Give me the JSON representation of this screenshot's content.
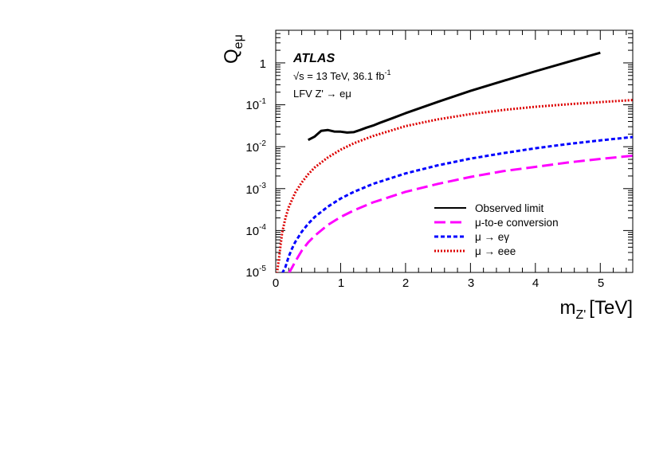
{
  "chart_data": {
    "type": "line",
    "xlabel": "m_{Z'} [TeV]",
    "xlabel_main": "m",
    "xlabel_sub": "Z'",
    "xlabel_unit": "[TeV]",
    "ylabel": "Q_{eμ}",
    "ylabel_main": "Q",
    "ylabel_sub": "eμ",
    "xlim": [
      0,
      5.5
    ],
    "ylim": [
      1e-05,
      6
    ],
    "yscale": "log",
    "x_ticks": [
      "0",
      "1",
      "2",
      "3",
      "4",
      "5"
    ],
    "y_ticks": [
      {
        "base": "10",
        "exp": "-5"
      },
      {
        "base": "10",
        "exp": "-4"
      },
      {
        "base": "10",
        "exp": "-3"
      },
      {
        "base": "10",
        "exp": "-2"
      },
      {
        "base": "10",
        "exp": "-1"
      },
      {
        "base": "1",
        "exp": ""
      }
    ],
    "annotations": {
      "experiment": "ATLAS",
      "energy_prefix": "√s = 13 TeV, 36.1 fb",
      "energy_exp": "-1",
      "process": "LFV Z' → eμ"
    },
    "series": [
      {
        "name": "Observed limit",
        "color": "#000000",
        "style": "solid",
        "x": [
          0.5,
          0.6,
          0.7,
          0.8,
          0.9,
          1.0,
          1.1,
          1.2,
          1.3,
          1.4,
          1.5,
          1.6,
          1.8,
          2.0,
          2.5,
          3.0,
          3.5,
          4.0,
          4.5,
          5.0
        ],
        "y": [
          0.0145,
          0.0175,
          0.024,
          0.025,
          0.023,
          0.0228,
          0.0218,
          0.0222,
          0.025,
          0.0285,
          0.032,
          0.037,
          0.048,
          0.063,
          0.118,
          0.215,
          0.37,
          0.63,
          1.05,
          1.75
        ]
      },
      {
        "name": "μ-to-e conversion",
        "color": "#ff00ff",
        "style": "dashed",
        "x": [
          0.2,
          0.25,
          0.3,
          0.4,
          0.5,
          0.6,
          0.8,
          1.0,
          1.2,
          1.5,
          2.0,
          2.5,
          3.0,
          3.5,
          4.0,
          4.5,
          5.0,
          5.5
        ],
        "y": [
          9.5e-06,
          1.3e-05,
          1.8e-05,
          3.3e-05,
          5.2e-05,
          7.5e-05,
          0.000135,
          0.00021,
          0.0003,
          0.00047,
          0.00084,
          0.0013,
          0.0019,
          0.0026,
          0.0033,
          0.0042,
          0.0051,
          0.0061
        ]
      },
      {
        "name": "μ → eγ",
        "color": "#0000ff",
        "style": "dashed",
        "x": [
          0.1,
          0.15,
          0.2,
          0.25,
          0.3,
          0.4,
          0.5,
          0.6,
          0.8,
          1.0,
          1.2,
          1.5,
          2.0,
          2.5,
          3.0,
          3.5,
          4.0,
          4.5,
          5.0,
          5.5
        ],
        "y": [
          9.5e-06,
          1.35e-05,
          2.4e-05,
          3.7e-05,
          5.3e-05,
          9.3e-05,
          0.000145,
          0.00021,
          0.00037,
          0.00058,
          0.00083,
          0.0013,
          0.0023,
          0.0036,
          0.0052,
          0.007,
          0.0092,
          0.0116,
          0.0142,
          0.017
        ]
      },
      {
        "name": "μ → eee",
        "color": "#dd0000",
        "style": "dotted",
        "x": [
          0.02,
          0.05,
          0.1,
          0.15,
          0.2,
          0.3,
          0.4,
          0.5,
          0.6,
          0.8,
          1.0,
          1.2,
          1.5,
          2.0,
          2.5,
          3.0,
          3.5,
          4.0,
          4.5,
          5.0,
          5.5
        ],
        "y": [
          9.5e-06,
          2.2e-05,
          9e-05,
          0.0002,
          0.00036,
          0.0008,
          0.0014,
          0.0022,
          0.0032,
          0.0055,
          0.0085,
          0.012,
          0.018,
          0.031,
          0.045,
          0.06,
          0.075,
          0.09,
          0.103,
          0.116,
          0.13
        ]
      }
    ],
    "legend": [
      "Observed limit",
      "μ-to-e conversion",
      "μ → eγ",
      "μ → eee"
    ],
    "legend_placement": "bottom-right"
  }
}
